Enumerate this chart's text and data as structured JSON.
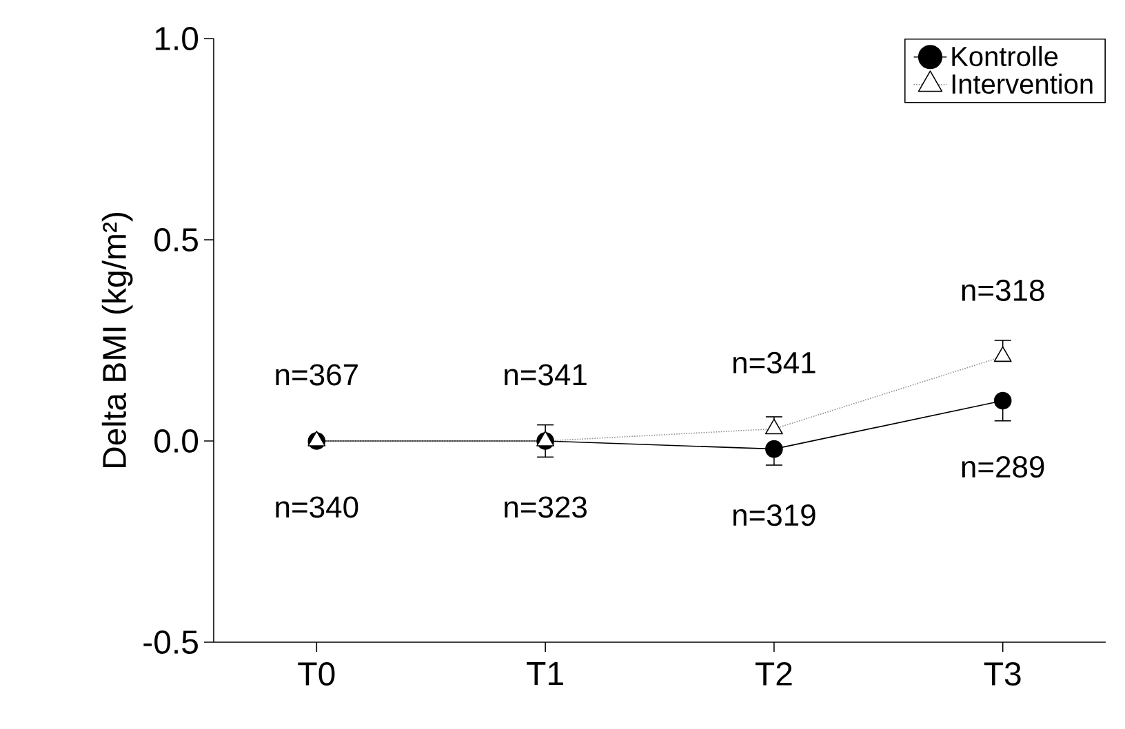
{
  "chart_data": {
    "type": "line",
    "ylabel": "Delta BMI (kg/m²)",
    "categories": [
      "T0",
      "T1",
      "T2",
      "T3"
    ],
    "ylim": [
      -0.5,
      1.0
    ],
    "yticks": [
      {
        "value": -0.5,
        "label": "-0.5"
      },
      {
        "value": 0,
        "label": "0.0"
      },
      {
        "value": 0.5,
        "label": "0.5"
      },
      {
        "value": 1.0,
        "label": "1.0"
      }
    ],
    "series": [
      {
        "name": "Kontrolle",
        "color": "#000000",
        "marker": "circle",
        "line_style": "solid",
        "values": [
          0,
          0,
          -0.02,
          0.1
        ],
        "errors": [
          null,
          [
            -0.04,
            0
          ],
          [
            -0.06,
            -0.02
          ],
          [
            0.05,
            0.1
          ]
        ]
      },
      {
        "name": "Intervention",
        "color": "#909090",
        "marker": "triangle",
        "line_style": "dotted",
        "values": [
          0,
          0,
          0.03,
          0.21
        ],
        "errors": [
          null,
          [
            0,
            0.04
          ],
          [
            0.03,
            0.06
          ],
          [
            0.21,
            0.25
          ]
        ]
      }
    ],
    "annotations": [
      "n=367",
      "n=340",
      "n=341",
      "n=323",
      "n=341",
      "n=319",
      "n=318",
      "n=289"
    ],
    "legend": "top right",
    "grid": false
  }
}
